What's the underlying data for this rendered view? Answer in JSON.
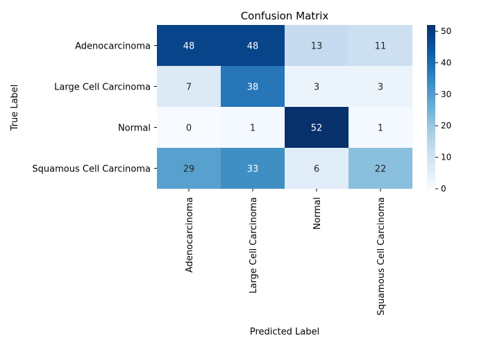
{
  "chart_data": {
    "type": "heatmap",
    "title": "Confusion Matrix",
    "xlabel": "Predicted Label",
    "ylabel": "True Label",
    "x_categories": [
      "Adenocarcinoma",
      "Large Cell Carcinoma",
      "Normal",
      "Squamous Cell Carcinoma"
    ],
    "y_categories": [
      "Adenocarcinoma",
      "Large Cell Carcinoma",
      "Normal",
      "Squamous Cell Carcinoma"
    ],
    "values": [
      [
        48,
        48,
        13,
        11
      ],
      [
        7,
        38,
        3,
        3
      ],
      [
        0,
        1,
        52,
        1
      ],
      [
        29,
        33,
        6,
        22
      ]
    ],
    "colormap": "Blues",
    "colorbar": {
      "range": [
        0,
        52
      ],
      "ticks": [
        0,
        10,
        20,
        30,
        40,
        50
      ]
    }
  }
}
